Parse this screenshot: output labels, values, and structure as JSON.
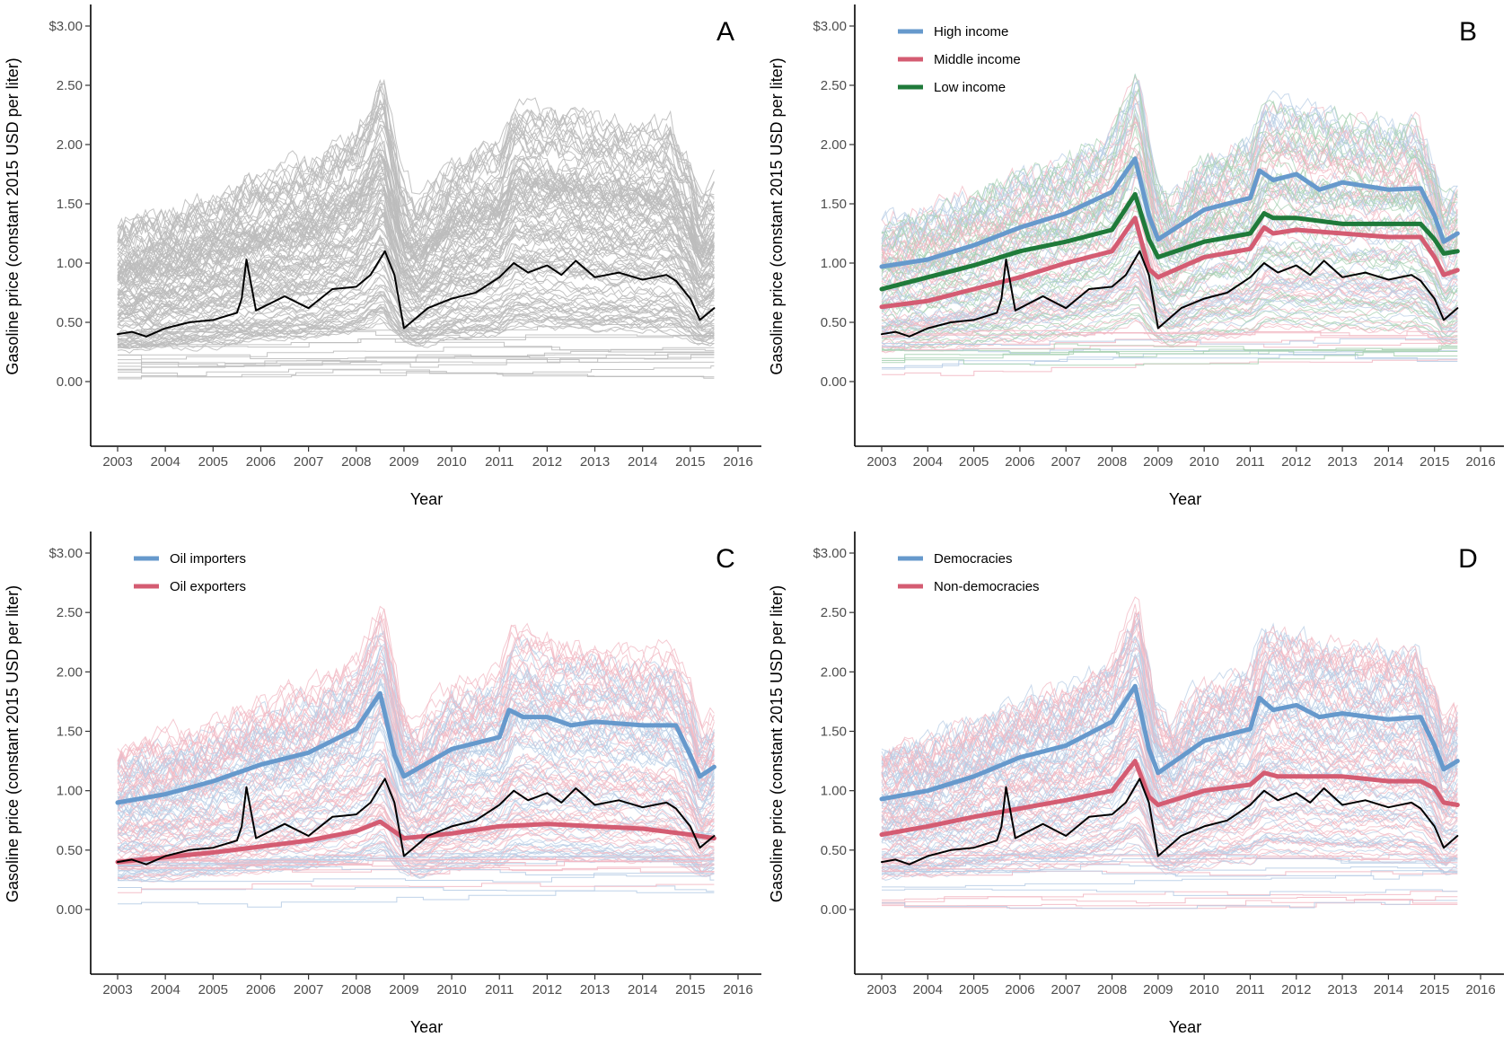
{
  "y_ticks": [
    "0.00",
    "0.50",
    "1.00",
    "1.50",
    "2.00",
    "2.50",
    "$3.00"
  ],
  "x_ticks": [
    "2003",
    "2004",
    "2005",
    "2006",
    "2007",
    "2008",
    "2009",
    "2010",
    "2011",
    "2012",
    "2013",
    "2014",
    "2015",
    "2016"
  ],
  "colors": {
    "background_lines_gray": "#bdbdbd",
    "benchmark": "#000000",
    "blue": "#6699cc",
    "red": "#d45c72",
    "green": "#1f7a3a",
    "light_blue": "#b8cde6",
    "light_red": "#f2b8c3",
    "light_green": "#a8d2b3"
  },
  "chart_data": [
    {
      "type": "line",
      "panel": "A",
      "xlabel": "Year",
      "ylabel": "Gasoline price (constant 2015 USD per liter)",
      "xlim": [
        2002.6,
        2016.2
      ],
      "ylim": [
        -0.2,
        3.4
      ],
      "grid": false,
      "legend": [],
      "background_lines": "gray",
      "series": [
        {
          "role": "benchmark",
          "color": "#000000",
          "x": [
            2003.0,
            2003.3,
            2003.6,
            2004.0,
            2004.5,
            2005.0,
            2005.5,
            2005.6,
            2005.7,
            2005.9,
            2006.5,
            2007.0,
            2007.5,
            2008.0,
            2008.3,
            2008.6,
            2008.8,
            2009.0,
            2009.5,
            2010.0,
            2010.5,
            2011.0,
            2011.3,
            2011.6,
            2012.0,
            2012.3,
            2012.6,
            2013.0,
            2013.5,
            2014.0,
            2014.5,
            2014.7,
            2015.0,
            2015.2,
            2015.5
          ],
          "y": [
            0.4,
            0.42,
            0.38,
            0.45,
            0.5,
            0.52,
            0.58,
            0.7,
            1.03,
            0.6,
            0.72,
            0.62,
            0.78,
            0.8,
            0.9,
            1.1,
            0.9,
            0.45,
            0.62,
            0.7,
            0.75,
            0.88,
            1.0,
            0.92,
            0.98,
            0.9,
            1.02,
            0.88,
            0.92,
            0.86,
            0.9,
            0.85,
            0.7,
            0.52,
            0.62
          ]
        }
      ]
    },
    {
      "type": "line",
      "panel": "B",
      "xlabel": "Year",
      "ylabel": "Gasoline price (constant 2015 USD per liter)",
      "xlim": [
        2002.6,
        2016.2
      ],
      "ylim": [
        -0.2,
        3.4
      ],
      "grid": false,
      "legend": [
        "High income",
        "Middle income",
        "Low income"
      ],
      "legend_position": "top-left",
      "background_lines": "mixed-blue-red-green",
      "series": [
        {
          "name": "High income",
          "color": "#6699cc",
          "x": [
            2003.0,
            2004.0,
            2005.0,
            2006.0,
            2007.0,
            2008.0,
            2008.5,
            2008.8,
            2009.0,
            2010.0,
            2011.0,
            2011.2,
            2011.5,
            2012.0,
            2012.5,
            2013.0,
            2014.0,
            2014.7,
            2015.0,
            2015.2,
            2015.5
          ],
          "y": [
            0.97,
            1.03,
            1.15,
            1.3,
            1.42,
            1.6,
            1.88,
            1.4,
            1.2,
            1.45,
            1.55,
            1.78,
            1.7,
            1.75,
            1.62,
            1.68,
            1.62,
            1.63,
            1.4,
            1.18,
            1.25
          ]
        },
        {
          "name": "Middle income",
          "color": "#d45c72",
          "x": [
            2003.0,
            2004.0,
            2005.0,
            2006.0,
            2007.0,
            2008.0,
            2008.5,
            2008.8,
            2009.0,
            2010.0,
            2011.0,
            2011.3,
            2011.5,
            2012.0,
            2013.0,
            2014.0,
            2014.7,
            2015.0,
            2015.2,
            2015.5
          ],
          "y": [
            0.63,
            0.68,
            0.78,
            0.88,
            1.0,
            1.1,
            1.38,
            0.95,
            0.88,
            1.05,
            1.12,
            1.3,
            1.25,
            1.28,
            1.25,
            1.22,
            1.22,
            1.05,
            0.9,
            0.94
          ]
        },
        {
          "name": "Low income",
          "color": "#1f7a3a",
          "x": [
            2003.0,
            2004.0,
            2005.0,
            2006.0,
            2007.0,
            2008.0,
            2008.5,
            2008.8,
            2009.0,
            2010.0,
            2011.0,
            2011.3,
            2011.5,
            2012.0,
            2013.0,
            2014.0,
            2014.7,
            2015.0,
            2015.2,
            2015.5
          ],
          "y": [
            0.78,
            0.88,
            0.98,
            1.1,
            1.18,
            1.28,
            1.58,
            1.2,
            1.05,
            1.18,
            1.25,
            1.42,
            1.38,
            1.38,
            1.33,
            1.33,
            1.33,
            1.2,
            1.08,
            1.1
          ]
        },
        {
          "role": "benchmark",
          "color": "#000000",
          "x": [
            2003.0,
            2003.3,
            2003.6,
            2004.0,
            2004.5,
            2005.0,
            2005.5,
            2005.6,
            2005.7,
            2005.9,
            2006.5,
            2007.0,
            2007.5,
            2008.0,
            2008.3,
            2008.6,
            2008.8,
            2009.0,
            2009.5,
            2010.0,
            2010.5,
            2011.0,
            2011.3,
            2011.6,
            2012.0,
            2012.3,
            2012.6,
            2013.0,
            2013.5,
            2014.0,
            2014.5,
            2014.7,
            2015.0,
            2015.2,
            2015.5
          ],
          "y": [
            0.4,
            0.42,
            0.38,
            0.45,
            0.5,
            0.52,
            0.58,
            0.7,
            1.03,
            0.6,
            0.72,
            0.62,
            0.78,
            0.8,
            0.9,
            1.1,
            0.9,
            0.45,
            0.62,
            0.7,
            0.75,
            0.88,
            1.0,
            0.92,
            0.98,
            0.9,
            1.02,
            0.88,
            0.92,
            0.86,
            0.9,
            0.85,
            0.7,
            0.52,
            0.62
          ]
        }
      ]
    },
    {
      "type": "line",
      "panel": "C",
      "xlabel": "Year",
      "ylabel": "Gasoline price (constant 2015 USD per liter)",
      "xlim": [
        2002.6,
        2016.2
      ],
      "ylim": [
        -0.2,
        3.4
      ],
      "grid": false,
      "legend": [
        "Oil importers",
        "Oil exporters"
      ],
      "legend_position": "top-left",
      "background_lines": "mixed-blue-red",
      "series": [
        {
          "name": "Oil importers",
          "color": "#6699cc",
          "x": [
            2003.0,
            2004.0,
            2005.0,
            2006.0,
            2007.0,
            2008.0,
            2008.5,
            2008.8,
            2009.0,
            2010.0,
            2011.0,
            2011.2,
            2011.5,
            2012.0,
            2012.5,
            2013.0,
            2014.0,
            2014.7,
            2015.0,
            2015.2,
            2015.5
          ],
          "y": [
            0.9,
            0.97,
            1.08,
            1.22,
            1.32,
            1.52,
            1.82,
            1.3,
            1.12,
            1.35,
            1.45,
            1.68,
            1.62,
            1.62,
            1.55,
            1.58,
            1.55,
            1.55,
            1.3,
            1.12,
            1.2
          ]
        },
        {
          "name": "Oil exporters",
          "color": "#d45c72",
          "x": [
            2003.0,
            2004.0,
            2005.0,
            2006.0,
            2007.0,
            2008.0,
            2008.5,
            2009.0,
            2009.5,
            2010.0,
            2011.0,
            2012.0,
            2013.0,
            2014.0,
            2015.0,
            2015.5
          ],
          "y": [
            0.4,
            0.44,
            0.48,
            0.53,
            0.58,
            0.66,
            0.74,
            0.6,
            0.62,
            0.64,
            0.7,
            0.72,
            0.7,
            0.68,
            0.63,
            0.6
          ]
        },
        {
          "role": "benchmark",
          "color": "#000000",
          "x": [
            2003.0,
            2003.3,
            2003.6,
            2004.0,
            2004.5,
            2005.0,
            2005.5,
            2005.6,
            2005.7,
            2005.9,
            2006.5,
            2007.0,
            2007.5,
            2008.0,
            2008.3,
            2008.6,
            2008.8,
            2009.0,
            2009.5,
            2010.0,
            2010.5,
            2011.0,
            2011.3,
            2011.6,
            2012.0,
            2012.3,
            2012.6,
            2013.0,
            2013.5,
            2014.0,
            2014.5,
            2014.7,
            2015.0,
            2015.2,
            2015.5
          ],
          "y": [
            0.4,
            0.42,
            0.38,
            0.45,
            0.5,
            0.52,
            0.58,
            0.7,
            1.03,
            0.6,
            0.72,
            0.62,
            0.78,
            0.8,
            0.9,
            1.1,
            0.9,
            0.45,
            0.62,
            0.7,
            0.75,
            0.88,
            1.0,
            0.92,
            0.98,
            0.9,
            1.02,
            0.88,
            0.92,
            0.86,
            0.9,
            0.85,
            0.7,
            0.52,
            0.62
          ]
        }
      ]
    },
    {
      "type": "line",
      "panel": "D",
      "xlabel": "Year",
      "ylabel": "Gasoline price (constant 2015 USD per liter)",
      "xlim": [
        2002.6,
        2016.2
      ],
      "ylim": [
        -0.2,
        3.4
      ],
      "grid": false,
      "legend": [
        "Democracies",
        "Non-democracies"
      ],
      "legend_position": "top-left",
      "background_lines": "mixed-blue-red",
      "series": [
        {
          "name": "Democracies",
          "color": "#6699cc",
          "x": [
            2003.0,
            2004.0,
            2005.0,
            2006.0,
            2007.0,
            2008.0,
            2008.5,
            2008.8,
            2009.0,
            2010.0,
            2011.0,
            2011.2,
            2011.5,
            2012.0,
            2012.5,
            2013.0,
            2014.0,
            2014.7,
            2015.0,
            2015.2,
            2015.5
          ],
          "y": [
            0.93,
            1.0,
            1.12,
            1.28,
            1.38,
            1.58,
            1.88,
            1.35,
            1.15,
            1.42,
            1.52,
            1.78,
            1.68,
            1.72,
            1.62,
            1.65,
            1.6,
            1.62,
            1.38,
            1.18,
            1.25
          ]
        },
        {
          "name": "Non-democracies",
          "color": "#d45c72",
          "x": [
            2003.0,
            2004.0,
            2005.0,
            2006.0,
            2007.0,
            2008.0,
            2008.5,
            2008.8,
            2009.0,
            2010.0,
            2011.0,
            2011.3,
            2011.6,
            2012.0,
            2013.0,
            2014.0,
            2014.7,
            2015.0,
            2015.2,
            2015.5
          ],
          "y": [
            0.63,
            0.7,
            0.78,
            0.85,
            0.92,
            1.0,
            1.25,
            0.95,
            0.88,
            1.0,
            1.05,
            1.15,
            1.12,
            1.12,
            1.12,
            1.08,
            1.08,
            1.02,
            0.9,
            0.88
          ]
        },
        {
          "role": "benchmark",
          "color": "#000000",
          "x": [
            2003.0,
            2003.3,
            2003.6,
            2004.0,
            2004.5,
            2005.0,
            2005.5,
            2005.6,
            2005.7,
            2005.9,
            2006.5,
            2007.0,
            2007.5,
            2008.0,
            2008.3,
            2008.6,
            2008.8,
            2009.0,
            2009.5,
            2010.0,
            2010.5,
            2011.0,
            2011.3,
            2011.6,
            2012.0,
            2012.3,
            2012.6,
            2013.0,
            2013.5,
            2014.0,
            2014.5,
            2014.7,
            2015.0,
            2015.2,
            2015.5
          ],
          "y": [
            0.4,
            0.42,
            0.38,
            0.45,
            0.5,
            0.52,
            0.58,
            0.7,
            1.03,
            0.6,
            0.72,
            0.62,
            0.78,
            0.8,
            0.9,
            1.1,
            0.9,
            0.45,
            0.62,
            0.7,
            0.75,
            0.88,
            1.0,
            0.92,
            0.98,
            0.9,
            1.02,
            0.88,
            0.92,
            0.86,
            0.9,
            0.85,
            0.7,
            0.52,
            0.62
          ]
        }
      ]
    }
  ]
}
